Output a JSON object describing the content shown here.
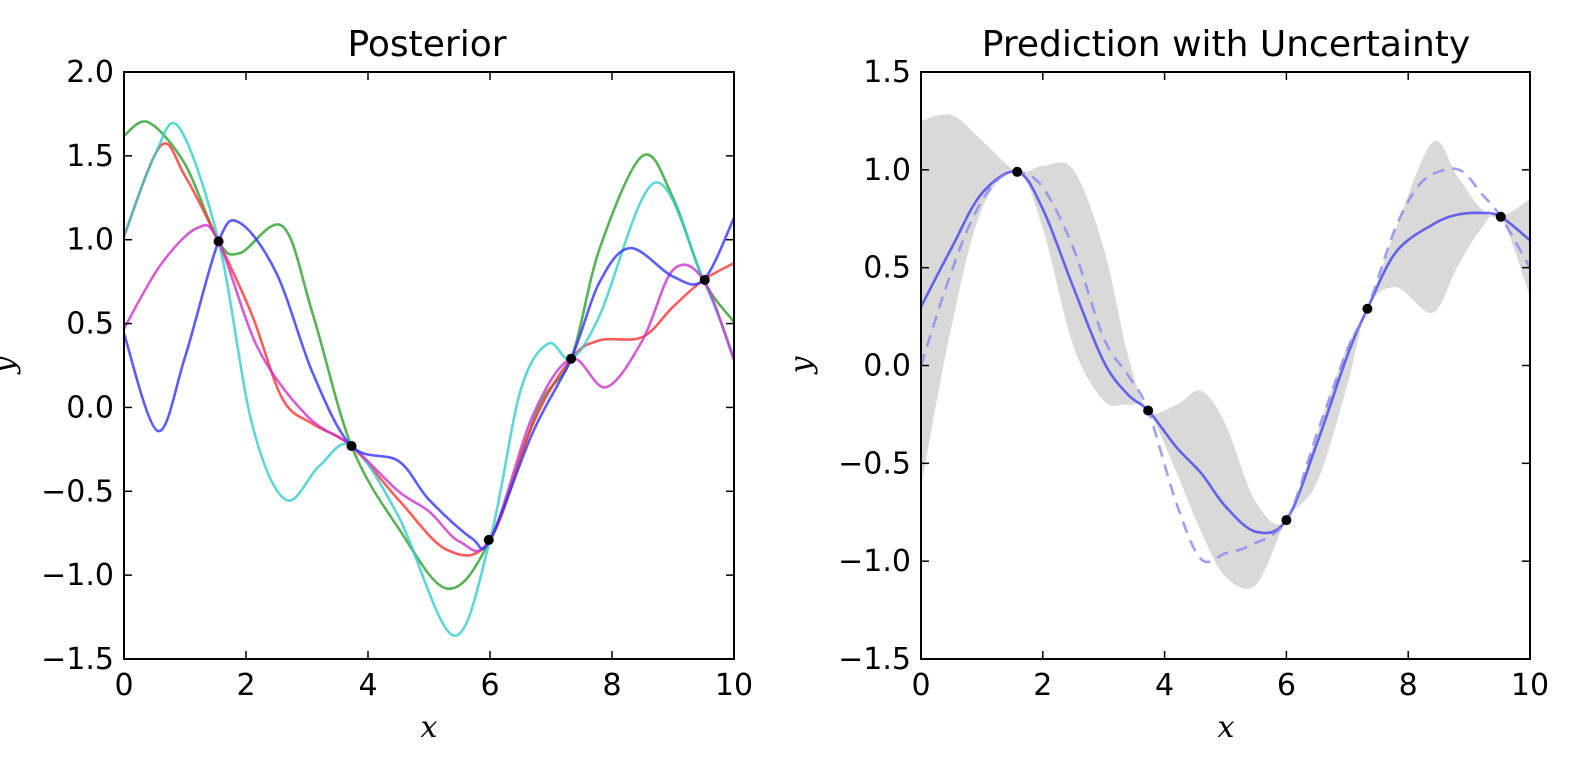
{
  "chart_data": [
    {
      "type": "line",
      "title": "Posterior",
      "xlabel": "x",
      "ylabel": "y",
      "xlim": [
        0,
        10
      ],
      "ylim": [
        -1.5,
        2.0
      ],
      "xticks": [
        0,
        2,
        4,
        6,
        8,
        10
      ],
      "yticks": [
        -1.5,
        -1.0,
        -0.5,
        0.0,
        0.5,
        1.0,
        1.5,
        2.0
      ],
      "xtick_labels": [
        "0",
        "2",
        "4",
        "6",
        "8",
        "10"
      ],
      "ytick_labels": [
        "−1.5",
        "−1.0",
        "−0.5",
        "0.0",
        "0.5",
        "1.0",
        "1.5",
        "2.0"
      ],
      "grid": false,
      "series": [
        {
          "color": "#2ca02c",
          "x": [
            0,
            0.4,
            1.0,
            1.55,
            1.9,
            2.6,
            3.1,
            3.73,
            4.5,
            5.3,
            6.0,
            6.8,
            7.33,
            7.8,
            8.5,
            9.0,
            9.5,
            10
          ],
          "y": [
            1.62,
            1.7,
            1.45,
            0.99,
            0.92,
            1.08,
            0.55,
            -0.23,
            -0.72,
            -1.08,
            -0.79,
            0.0,
            0.29,
            0.95,
            1.5,
            1.25,
            0.76,
            0.51
          ]
        },
        {
          "color": "#ff3333",
          "x": [
            0,
            0.6,
            1.0,
            1.55,
            2.1,
            2.6,
            3.1,
            3.73,
            4.5,
            5.3,
            6.0,
            6.7,
            7.33,
            7.8,
            8.5,
            9.0,
            9.5,
            10
          ],
          "y": [
            1.02,
            1.56,
            1.38,
            0.99,
            0.55,
            0.05,
            -0.1,
            -0.23,
            -0.55,
            -0.85,
            -0.79,
            -0.1,
            0.29,
            0.4,
            0.42,
            0.6,
            0.76,
            0.86
          ]
        },
        {
          "color": "#33cccc",
          "x": [
            0,
            0.5,
            0.9,
            1.55,
            2.1,
            2.65,
            3.2,
            3.73,
            4.5,
            5.4,
            6.0,
            6.5,
            6.95,
            7.33,
            7.8,
            8.7,
            9.5,
            10
          ],
          "y": [
            1.02,
            1.5,
            1.67,
            0.99,
            -0.1,
            -0.55,
            -0.35,
            -0.23,
            -0.65,
            -1.36,
            -0.79,
            0.1,
            0.38,
            0.29,
            0.55,
            1.34,
            0.76,
            0.3
          ]
        },
        {
          "color": "#cc33cc",
          "x": [
            0,
            0.6,
            1.2,
            1.55,
            2.2,
            3.0,
            3.73,
            4.5,
            5.0,
            5.5,
            6.0,
            6.7,
            7.33,
            7.9,
            8.5,
            9.0,
            9.5,
            10
          ],
          "y": [
            0.47,
            0.85,
            1.07,
            0.99,
            0.35,
            -0.05,
            -0.23,
            -0.5,
            -0.62,
            -0.8,
            -0.79,
            -0.05,
            0.29,
            0.12,
            0.4,
            0.82,
            0.76,
            0.28
          ]
        },
        {
          "color": "#3333ff",
          "x": [
            0,
            0.55,
            1.0,
            1.55,
            1.9,
            2.5,
            3.1,
            3.73,
            4.5,
            5.0,
            5.7,
            6.0,
            6.7,
            7.33,
            7.8,
            8.3,
            9.0,
            9.5,
            10
          ],
          "y": [
            0.44,
            -0.14,
            0.3,
            0.99,
            1.1,
            0.8,
            0.2,
            -0.23,
            -0.32,
            -0.55,
            -0.78,
            -0.79,
            -0.15,
            0.29,
            0.75,
            0.95,
            0.78,
            0.76,
            1.13
          ]
        }
      ],
      "observations": {
        "x": [
          1.55,
          3.73,
          5.98,
          7.33,
          9.52
        ],
        "y": [
          0.99,
          -0.23,
          -0.79,
          0.29,
          0.76
        ]
      }
    },
    {
      "type": "line",
      "title": "Prediction with Uncertainty",
      "xlabel": "x",
      "ylabel": "y",
      "xlim": [
        0,
        10
      ],
      "ylim": [
        -1.5,
        1.5
      ],
      "xticks": [
        0,
        2,
        4,
        6,
        8,
        10
      ],
      "yticks": [
        -1.5,
        -1.0,
        -0.5,
        0.0,
        0.5,
        1.0,
        1.5
      ],
      "xtick_labels": [
        "0",
        "2",
        "4",
        "6",
        "8",
        "10"
      ],
      "ytick_labels": [
        "−1.5",
        "−1.0",
        "−0.5",
        "0.0",
        "0.5",
        "1.0",
        "1.5"
      ],
      "grid": false,
      "band": {
        "color": "#d9d9d9",
        "x": [
          0,
          0.5,
          1.0,
          1.58,
          2.0,
          2.5,
          3.0,
          3.4,
          3.73,
          4.2,
          4.6,
          5.0,
          5.5,
          6.0,
          6.5,
          7.0,
          7.33,
          7.8,
          8.4,
          8.8,
          9.2,
          9.52,
          10
        ],
        "upper": [
          1.25,
          1.28,
          1.15,
          0.99,
          1.02,
          1.0,
          0.6,
          0.05,
          -0.23,
          -0.2,
          -0.13,
          -0.3,
          -0.7,
          -0.79,
          -0.35,
          0.1,
          0.29,
          0.7,
          1.14,
          0.97,
          0.8,
          0.76,
          0.85
        ],
        "lower": [
          -0.62,
          0.2,
          0.8,
          0.99,
          0.7,
          0.1,
          -0.18,
          -0.2,
          -0.23,
          -0.55,
          -0.85,
          -1.08,
          -1.12,
          -0.79,
          -0.6,
          -0.1,
          0.29,
          0.4,
          0.27,
          0.5,
          0.7,
          0.76,
          0.35
        ]
      },
      "series": [
        {
          "role": "prediction",
          "color": "#4444ee",
          "dash": "solid",
          "x": [
            0,
            0.5,
            1.0,
            1.58,
            2.0,
            2.5,
            3.0,
            3.4,
            3.73,
            4.2,
            4.6,
            5.0,
            5.5,
            6.0,
            6.5,
            7.0,
            7.33,
            7.8,
            8.4,
            8.8,
            9.2,
            9.52,
            10
          ],
          "y": [
            0.3,
            0.6,
            0.88,
            0.99,
            0.8,
            0.4,
            0.02,
            -0.15,
            -0.23,
            -0.42,
            -0.55,
            -0.72,
            -0.85,
            -0.79,
            -0.4,
            0.05,
            0.29,
            0.58,
            0.72,
            0.77,
            0.78,
            0.76,
            0.64
          ]
        },
        {
          "role": "true-function",
          "color": "#8888ee",
          "dash": "dashed",
          "x": [
            0,
            0.4,
            0.8,
            1.2,
            1.58,
            2.0,
            2.5,
            3.0,
            3.4,
            3.73,
            4.2,
            4.6,
            5.0,
            5.4,
            6.0,
            6.5,
            7.0,
            7.33,
            7.8,
            8.2,
            8.6,
            8.9,
            9.2,
            9.52,
            10
          ],
          "y": [
            0.0,
            0.39,
            0.72,
            0.93,
            0.99,
            0.91,
            0.6,
            0.14,
            -0.05,
            -0.23,
            -0.71,
            -0.99,
            -0.96,
            -0.92,
            -0.79,
            -0.35,
            0.08,
            0.29,
            0.71,
            0.93,
            1.0,
            0.99,
            0.88,
            0.76,
            0.5
          ]
        }
      ],
      "observations": {
        "x": [
          1.58,
          3.73,
          6.0,
          7.33,
          9.52
        ],
        "y": [
          0.99,
          -0.23,
          -0.79,
          0.29,
          0.76
        ]
      }
    }
  ]
}
